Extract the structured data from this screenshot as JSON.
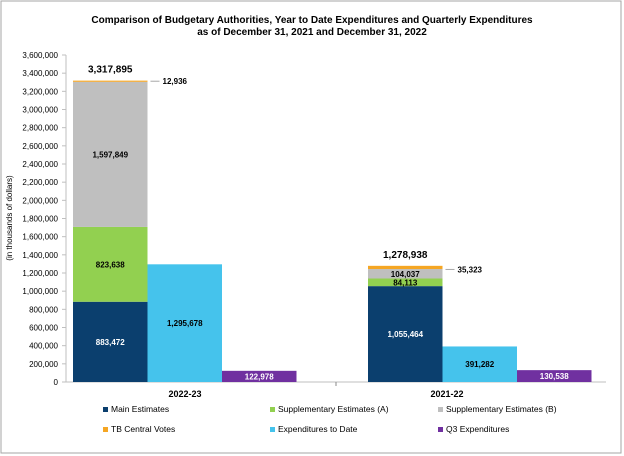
{
  "chart_data": {
    "type": "bar",
    "stacked_groups": true,
    "title": "Comparison of Budgetary Authorities, Year to Date Expenditures and Quarterly Expenditures",
    "subtitle": "as of December 31, 2021 and December 31, 2022",
    "ylabel": "(in thousands of dollars)",
    "xlabel": "",
    "ylim": [
      0,
      3600000
    ],
    "yticks": [
      0,
      200000,
      400000,
      600000,
      800000,
      1000000,
      1200000,
      1400000,
      1600000,
      1800000,
      2000000,
      2200000,
      2400000,
      2600000,
      2800000,
      3000000,
      3200000,
      3400000,
      3600000
    ],
    "ytick_labels": [
      "0",
      "200,000",
      "400,000",
      "600,000",
      "800,000",
      "1,000,000",
      "1,200,000",
      "1,400,000",
      "1,600,000",
      "1,800,000",
      "2,000,000",
      "2,200,000",
      "2,400,000",
      "2,600,000",
      "2,800,000",
      "3,000,000",
      "3,200,000",
      "3,400,000",
      "3,600,000"
    ],
    "grid": false,
    "legend_position": "bottom",
    "categories": [
      "2022-23",
      "2021-22"
    ],
    "series": [
      {
        "name": "Main Estimates",
        "color": "#0B3F6E",
        "stack": "authorities",
        "values": [
          883472,
          1055464
        ],
        "labels": [
          "883,472",
          "1,055,464"
        ]
      },
      {
        "name": "Supplementary Estimates (A)",
        "color": "#92D050",
        "stack": "authorities",
        "values": [
          823638,
          84113
        ],
        "labels": [
          "823,638",
          "84,113"
        ]
      },
      {
        "name": "Supplementary Estimates (B)",
        "color": "#BFBFBF",
        "stack": "authorities",
        "values": [
          1597849,
          104037
        ],
        "labels": [
          "1,597,849",
          "104,037"
        ]
      },
      {
        "name": "TB Central Votes",
        "color": "#F5A623",
        "stack": "authorities",
        "values": [
          12936,
          35323
        ],
        "labels": [
          "12,936",
          "35,323"
        ]
      },
      {
        "name": "Expenditures to Date",
        "color": "#45C3EC",
        "stack": "ytd",
        "values": [
          1295678,
          391282
        ],
        "labels": [
          "1,295,678",
          "391,282"
        ]
      },
      {
        "name": "Q3 Expenditures",
        "color": "#7030A0",
        "stack": "q3",
        "values": [
          122978,
          130538
        ],
        "labels": [
          "122,978",
          "130,538"
        ]
      }
    ],
    "totals": [
      3317895,
      1278938
    ],
    "total_labels": [
      "3,317,895",
      "1,278,938"
    ]
  }
}
